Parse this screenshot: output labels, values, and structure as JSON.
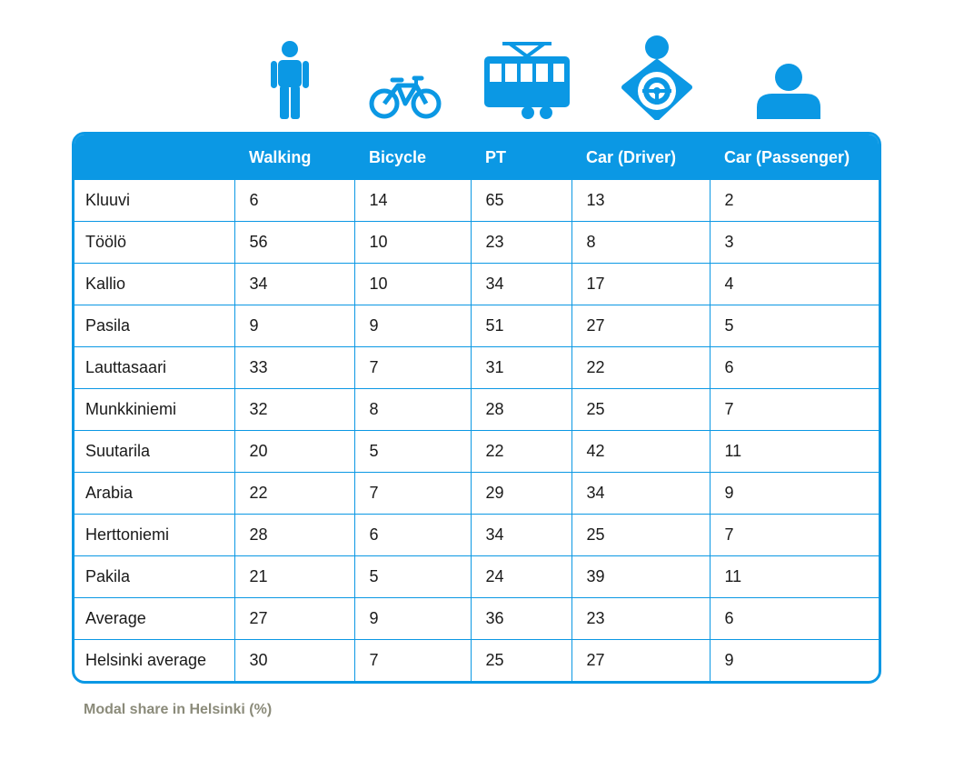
{
  "chart_data": {
    "type": "table",
    "columns": [
      "",
      "Walking",
      "Bicycle",
      "PT",
      "Car (Driver)",
      "Car (Passenger)"
    ],
    "rows": [
      {
        "area": "Kluuvi",
        "values": [
          "6",
          "14",
          "65",
          "13",
          "2"
        ]
      },
      {
        "area": "Töölö",
        "values": [
          "56",
          "10",
          "23",
          "8",
          "3"
        ]
      },
      {
        "area": "Kallio",
        "values": [
          "34",
          "10",
          "34",
          "17",
          "4"
        ]
      },
      {
        "area": "Pasila",
        "values": [
          "9",
          "9",
          "51",
          "27",
          "5"
        ]
      },
      {
        "area": "Lauttasaari",
        "values": [
          "33",
          "7",
          "31",
          "22",
          "6"
        ]
      },
      {
        "area": "Munkkiniemi",
        "values": [
          "32",
          "8",
          "28",
          "25",
          "7"
        ]
      },
      {
        "area": "Suutarila",
        "values": [
          "20",
          "5",
          "22",
          "42",
          "11"
        ]
      },
      {
        "area": "Arabia",
        "values": [
          "22",
          "7",
          "29",
          "34",
          "9"
        ]
      },
      {
        "area": "Herttoniemi",
        "values": [
          "28",
          "6",
          "34",
          "25",
          "7"
        ]
      },
      {
        "area": "Pakila",
        "values": [
          "21",
          "5",
          "24",
          "39",
          "11"
        ]
      },
      {
        "area": "Average",
        "values": [
          "27",
          "9",
          "36",
          "23",
          "6"
        ]
      },
      {
        "area": "Helsinki average",
        "values": [
          "30",
          "7",
          "25",
          "27",
          "9"
        ]
      }
    ],
    "caption": "Modal share in Helsinki (%)"
  },
  "icons": [
    "walking-person-icon",
    "bicycle-icon",
    "tram-icon",
    "car-driver-icon",
    "car-passenger-icon"
  ],
  "colors": {
    "accent": "#0b98e4",
    "caption": "#8b8b7a"
  }
}
